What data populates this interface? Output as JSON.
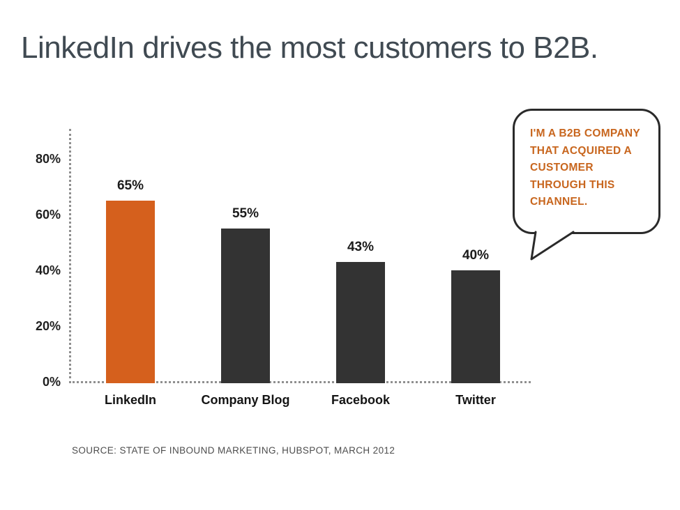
{
  "slide": {
    "title": "LinkedIn drives the most customers to B2B.",
    "source": "SOURCE: STATE OF INBOUND MARKETING, HUBSPOT, MARCH 2012"
  },
  "callout": {
    "text": "I'M A B2B COMPANY\nTHAT ACQUIRED A\nCUSTOMER\nTHROUGH THIS\nCHANNEL.",
    "text_color": "#c8661e",
    "border_color": "#2a2a2a"
  },
  "chart_data": {
    "type": "bar",
    "title": "LinkedIn drives the most customers to B2B.",
    "categories": [
      "LinkedIn",
      "Company Blog",
      "Facebook",
      "Twitter"
    ],
    "values": [
      65,
      55,
      43,
      40
    ],
    "value_labels": [
      "65%",
      "55%",
      "43%",
      "40%"
    ],
    "bar_colors": [
      "#d5601d",
      "#333333",
      "#333333",
      "#333333"
    ],
    "highlight_color": "#d5601d",
    "default_bar_color": "#333333",
    "xlabel": "",
    "ylabel": "",
    "ylim": [
      0,
      90
    ],
    "y_tick_labels": [
      "80%",
      "60%",
      "40%",
      "20%",
      "0%"
    ],
    "y_tick_values": [
      80,
      60,
      40,
      20,
      0
    ],
    "grid": false,
    "axis_style": "dotted",
    "legend": false
  }
}
